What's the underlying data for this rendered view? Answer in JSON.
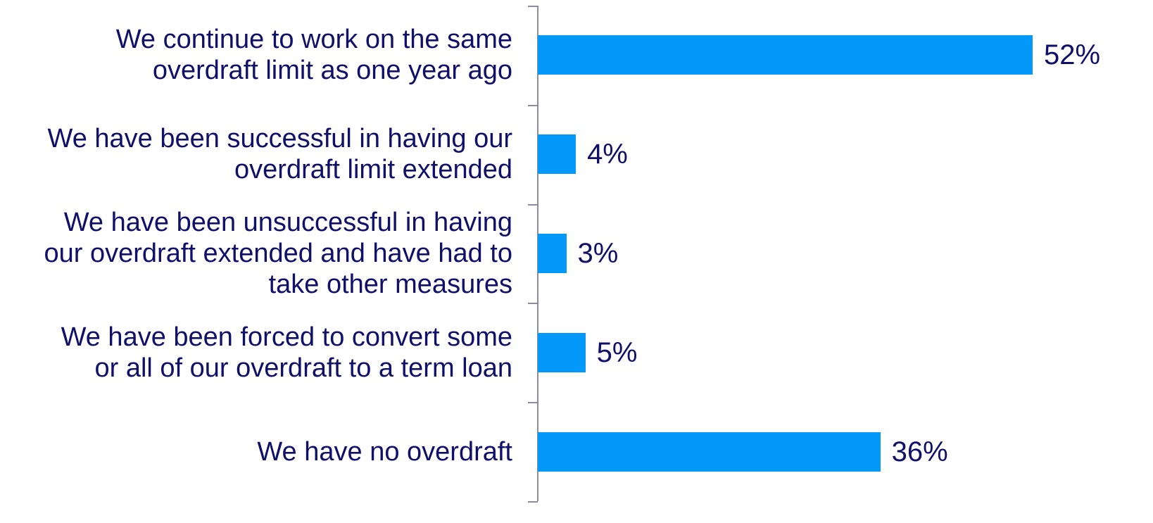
{
  "chart_data": {
    "type": "bar",
    "orientation": "horizontal",
    "categories": [
      "We continue to work on the same overdraft limit as one year ago",
      "We have been successful in having our overdraft limit extended",
      "We have been unsuccessful in having our overdraft extended and have had to take other measures",
      "We have been forced to convert some or all of our overdraft to a term loan",
      "We have no overdraft"
    ],
    "label_lines": [
      [
        "We continue to work on the same",
        "overdraft limit as one year ago"
      ],
      [
        "We have been successful in having our",
        "overdraft limit extended"
      ],
      [
        "We have been unsuccessful in having",
        "our overdraft extended and have had to",
        "take other measures"
      ],
      [
        "We have been forced to convert some",
        "or all of our overdraft to a term loan"
      ],
      [
        "We have no overdraft"
      ]
    ],
    "values": [
      52,
      4,
      3,
      5,
      36
    ],
    "value_labels": [
      "52%",
      "4%",
      "3%",
      "5%",
      "36%"
    ],
    "unit": "%",
    "xlim": [
      0,
      54
    ],
    "grid": false,
    "legend": "none",
    "colors": {
      "bar": "#0399fb",
      "text": "#10106b",
      "axis": "#8c8c9c"
    }
  }
}
